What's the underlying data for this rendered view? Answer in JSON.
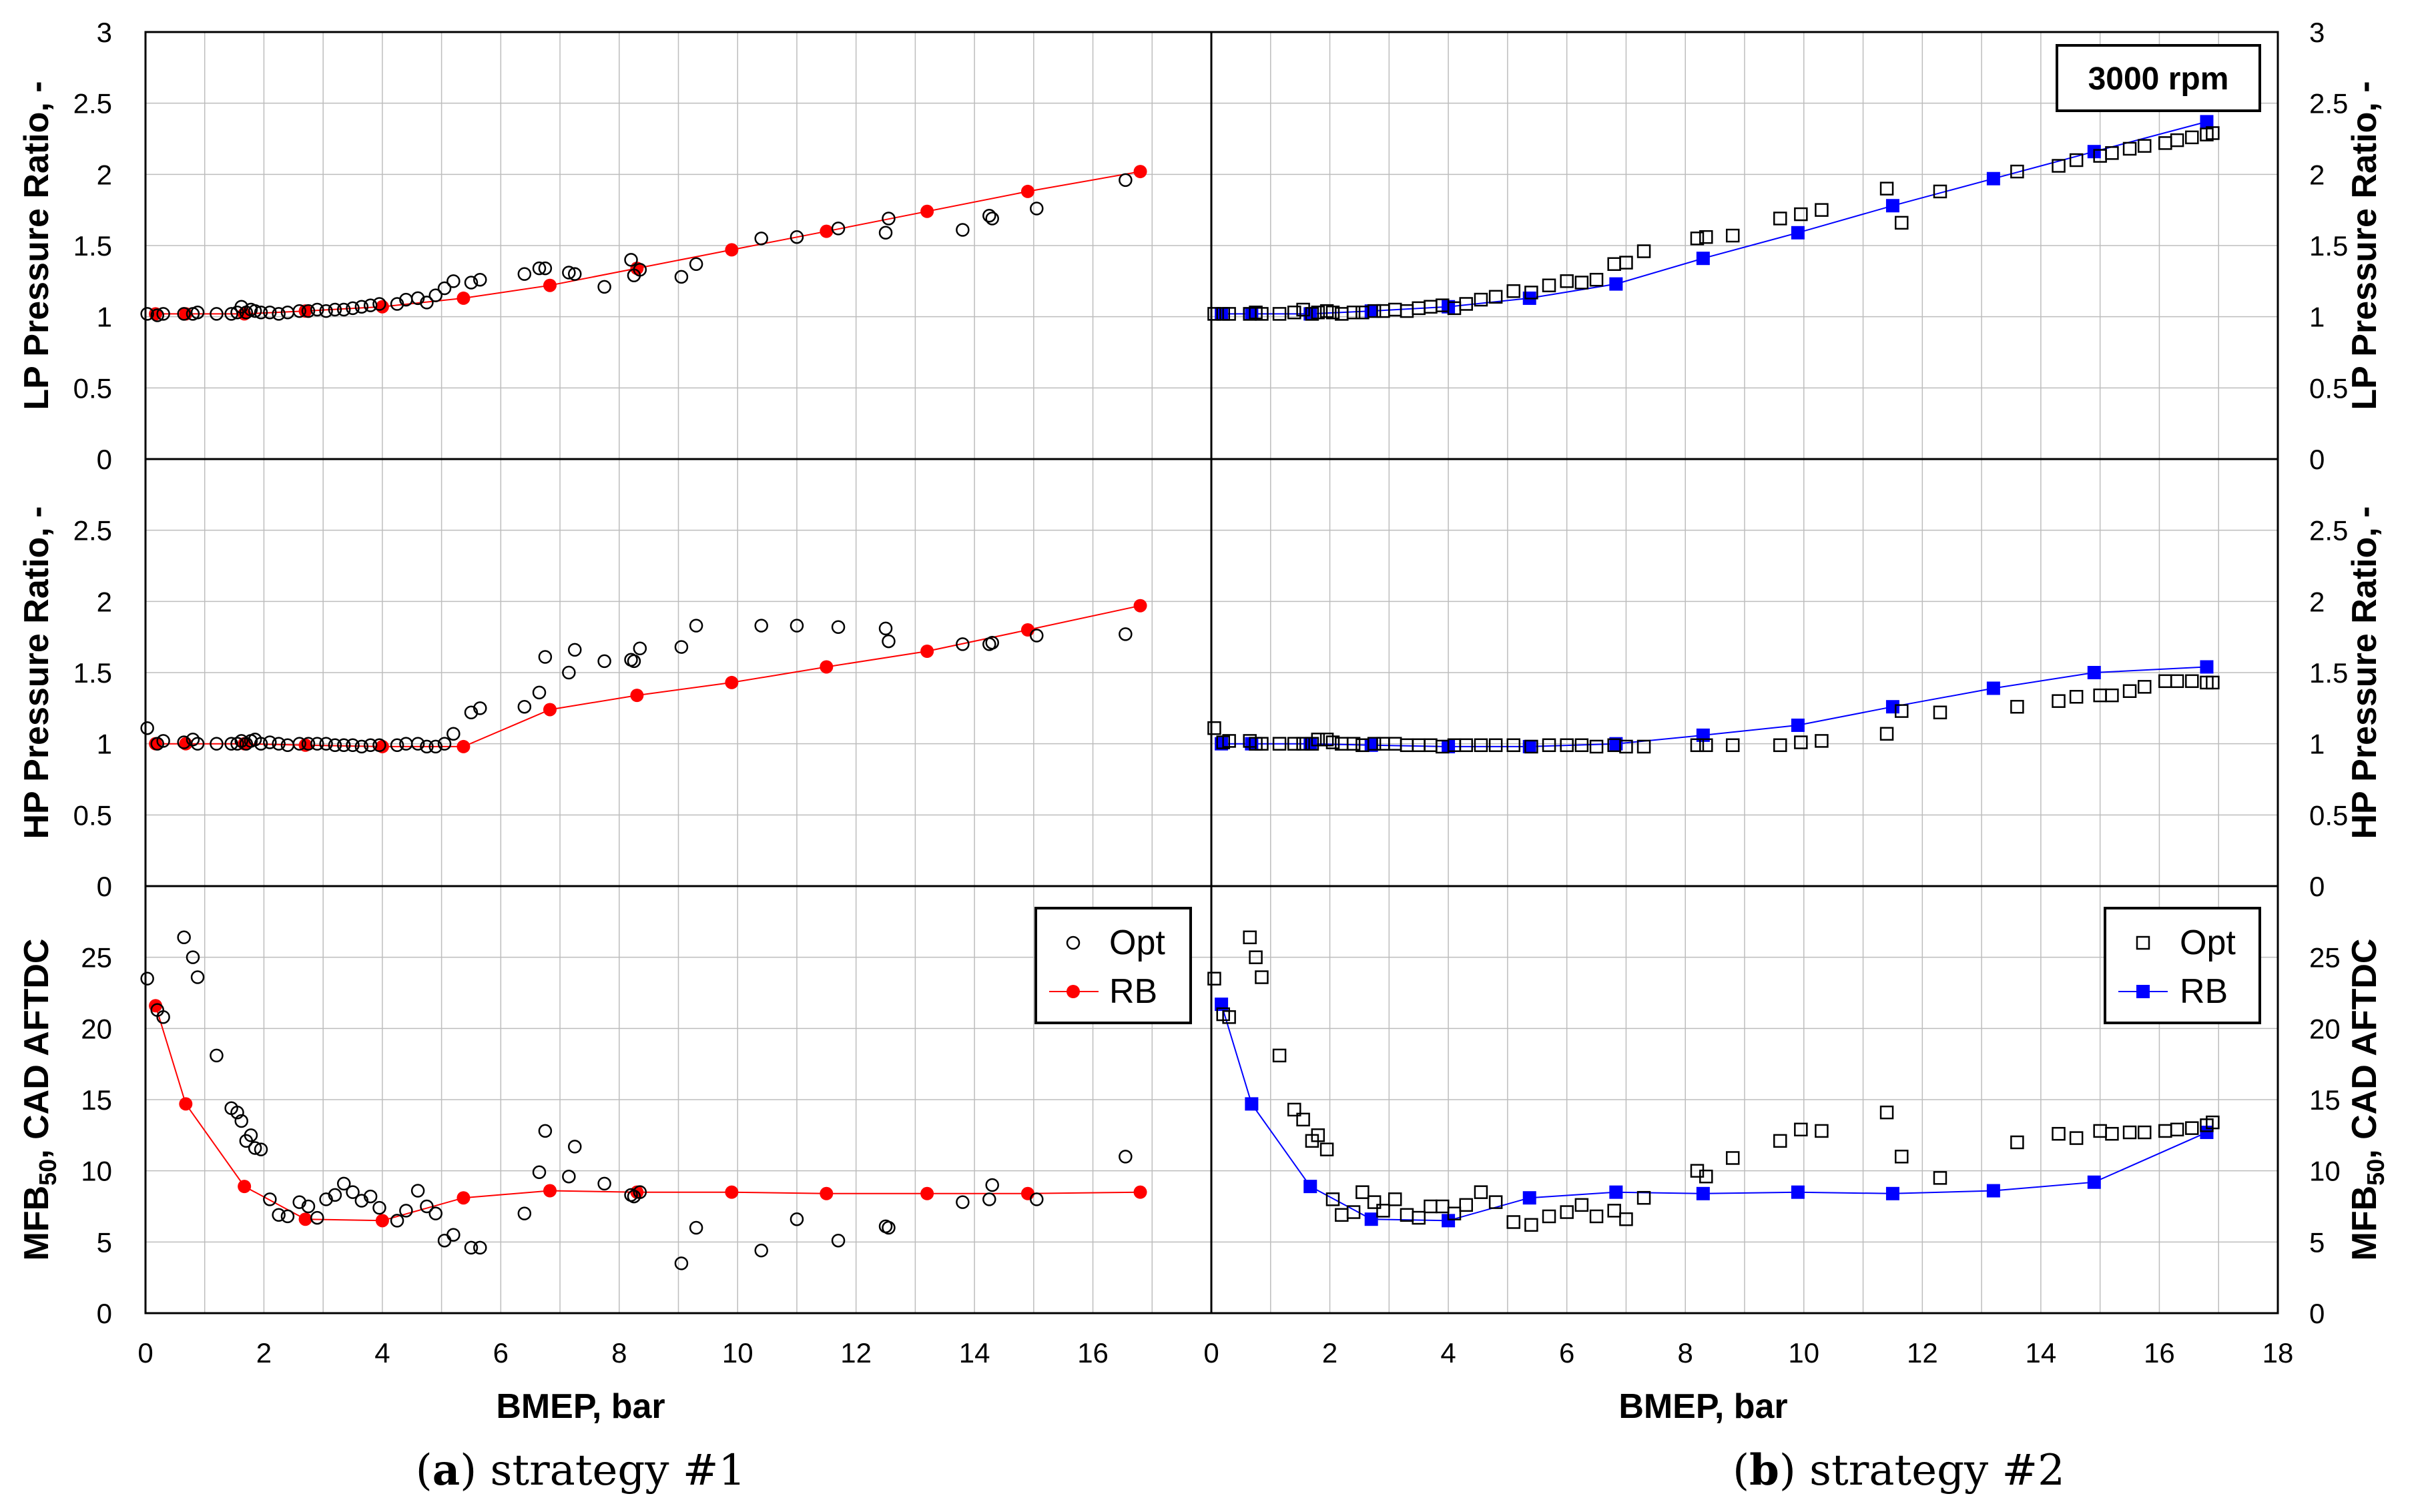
{
  "chart_data": {
    "type": "scatter",
    "annotation": "3000 rpm",
    "legend": {
      "opt": "Opt",
      "rb": "RB"
    },
    "colors": {
      "left_rb": "#ff0000",
      "right_rb": "#0000ff",
      "opt_marker": "#000000",
      "grid": "#bdbdbd"
    },
    "xlabel": "BMEP, bar",
    "captions": {
      "left": {
        "bold": "a",
        "rest": " strategy #1"
      },
      "right": {
        "bold": "b",
        "rest": " strategy #2"
      }
    },
    "ylabels": {
      "lp": "LP Pressure Ratio, -",
      "hp": "HP Pressure Ratio, -",
      "mfb_main": "MFB",
      "mfb_sub": "50",
      "mfb_rest": ", CAD AFTDC"
    },
    "x_ranges": {
      "left": [
        0,
        18
      ],
      "right": [
        0,
        18
      ]
    },
    "x_ticks": {
      "left": [
        "0",
        "2",
        "4",
        "6",
        "8",
        "10",
        "12",
        "14",
        "16"
      ],
      "right": [
        "0",
        "2",
        "4",
        "6",
        "8",
        "10",
        "12",
        "14",
        "16",
        "18"
      ]
    },
    "y_ticks": {
      "lp": [
        "0",
        "0.5",
        "1",
        "1.5",
        "2",
        "2.5",
        "3"
      ],
      "hp": [
        "0",
        "0.5",
        "1",
        "1.5",
        "2",
        "2.5"
      ],
      "mfb": [
        "0",
        "5",
        "10",
        "15",
        "20",
        "25"
      ]
    },
    "y_ranges": {
      "lp": [
        0,
        3
      ],
      "hp": [
        0,
        3
      ],
      "mfb": [
        0,
        30
      ]
    },
    "rb_x": [
      0.17,
      0.68,
      1.67,
      2.7,
      4.0,
      5.37,
      6.83,
      8.3,
      9.9,
      11.5,
      13.2,
      14.9,
      16.8
    ],
    "strategy1": {
      "lp_rb": [
        1.02,
        1.02,
        1.02,
        1.04,
        1.07,
        1.13,
        1.22,
        1.34,
        1.47,
        1.6,
        1.74,
        1.88,
        2.02
      ],
      "hp_rb": [
        1.0,
        1.0,
        1.0,
        0.99,
        0.98,
        0.98,
        1.24,
        1.34,
        1.43,
        1.54,
        1.65,
        1.8,
        1.97
      ],
      "mfb_rb": [
        21.6,
        14.7,
        8.9,
        6.6,
        6.5,
        8.1,
        8.6,
        8.5,
        8.5,
        8.4,
        8.4,
        8.4,
        8.5
      ],
      "opt_x": [
        0.03,
        0.2,
        0.3,
        0.65,
        0.8,
        0.88,
        1.2,
        1.45,
        1.55,
        1.62,
        1.7,
        1.78,
        1.85,
        1.95,
        2.1,
        2.25,
        2.4,
        2.6,
        2.75,
        2.9,
        3.05,
        3.2,
        3.35,
        3.5,
        3.65,
        3.8,
        3.95,
        4.25,
        4.4,
        4.6,
        4.75,
        4.9,
        5.05,
        5.2,
        5.5,
        5.65,
        6.4,
        6.65,
        6.75,
        7.15,
        7.25,
        7.75,
        8.2,
        8.25,
        8.35,
        9.05,
        9.3,
        10.4,
        11.0,
        11.7,
        12.5,
        12.55,
        13.8,
        14.25,
        14.3,
        15.05,
        16.55
      ],
      "lp_opt": [
        1.02,
        1.01,
        1.02,
        1.02,
        1.02,
        1.03,
        1.02,
        1.02,
        1.03,
        1.07,
        1.03,
        1.05,
        1.04,
        1.03,
        1.03,
        1.02,
        1.03,
        1.04,
        1.04,
        1.05,
        1.04,
        1.05,
        1.05,
        1.06,
        1.07,
        1.08,
        1.09,
        1.09,
        1.12,
        1.13,
        1.1,
        1.15,
        1.2,
        1.25,
        1.24,
        1.26,
        1.3,
        1.34,
        1.34,
        1.31,
        1.3,
        1.21,
        1.4,
        1.29,
        1.33,
        1.28,
        1.37,
        1.55,
        1.56,
        1.62,
        1.59,
        1.69,
        1.61,
        1.71,
        1.69,
        1.76,
        1.96
      ],
      "hp_opt": [
        1.11,
        1.0,
        1.02,
        1.01,
        1.03,
        1.0,
        1.0,
        1.0,
        1.0,
        1.02,
        1.0,
        1.02,
        1.03,
        1.0,
        1.01,
        1.0,
        0.99,
        1.0,
        1.0,
        1.0,
        1.0,
        0.99,
        0.99,
        0.99,
        0.98,
        0.99,
        0.99,
        0.99,
        1.0,
        1.0,
        0.98,
        0.98,
        1.0,
        1.07,
        1.22,
        1.25,
        1.26,
        1.36,
        1.61,
        1.5,
        1.66,
        1.58,
        1.59,
        1.58,
        1.67,
        1.68,
        1.83,
        1.83,
        1.83,
        1.82,
        1.81,
        1.72,
        1.7,
        1.7,
        1.71,
        1.76,
        1.77
      ],
      "mfb_opt": [
        23.5,
        21.3,
        20.8,
        26.4,
        25.0,
        23.6,
        18.1,
        14.4,
        14.1,
        13.5,
        12.1,
        12.5,
        11.6,
        11.5,
        8.0,
        6.9,
        6.8,
        7.8,
        7.5,
        6.7,
        8.0,
        8.3,
        9.1,
        8.5,
        7.9,
        8.2,
        7.4,
        6.5,
        7.2,
        8.6,
        7.5,
        7.0,
        5.1,
        5.5,
        4.6,
        4.6,
        7.0,
        9.9,
        12.8,
        9.6,
        11.7,
        9.1,
        8.3,
        8.2,
        8.5,
        3.5,
        6.0,
        4.4,
        6.6,
        5.1,
        6.1,
        6.0,
        7.8,
        8.0,
        9.0,
        8.0,
        11.0
      ]
    },
    "strategy2": {
      "lp_rb": [
        1.02,
        1.02,
        1.02,
        1.04,
        1.07,
        1.13,
        1.23,
        1.41,
        1.59,
        1.78,
        1.97,
        2.16,
        2.37
      ],
      "hp_rb": [
        1.0,
        1.0,
        1.0,
        0.99,
        0.98,
        0.98,
        1.0,
        1.06,
        1.13,
        1.26,
        1.39,
        1.5,
        1.54
      ],
      "mfb_rb": [
        21.7,
        14.7,
        8.9,
        6.6,
        6.5,
        8.1,
        8.5,
        8.4,
        8.5,
        8.4,
        8.6,
        9.2,
        12.7
      ],
      "opt_x": [
        0.05,
        0.2,
        0.3,
        0.65,
        0.75,
        0.85,
        1.15,
        1.4,
        1.55,
        1.7,
        1.8,
        1.95,
        2.05,
        2.2,
        2.4,
        2.55,
        2.75,
        2.9,
        3.1,
        3.3,
        3.5,
        3.7,
        3.9,
        4.1,
        4.3,
        4.55,
        4.8,
        5.1,
        5.4,
        5.7,
        6.0,
        6.25,
        6.5,
        6.8,
        7.0,
        7.3,
        8.2,
        8.35,
        8.8,
        9.6,
        9.95,
        10.3,
        11.4,
        11.65,
        12.3,
        13.6,
        14.3,
        14.6,
        15.0,
        15.2,
        15.5,
        15.75,
        16.1,
        16.3,
        16.55,
        16.8,
        16.9
      ],
      "lp_opt": [
        1.02,
        1.02,
        1.02,
        1.02,
        1.03,
        1.02,
        1.02,
        1.03,
        1.05,
        1.02,
        1.03,
        1.04,
        1.03,
        1.02,
        1.03,
        1.03,
        1.04,
        1.04,
        1.05,
        1.04,
        1.06,
        1.07,
        1.08,
        1.06,
        1.09,
        1.12,
        1.14,
        1.18,
        1.17,
        1.22,
        1.25,
        1.24,
        1.26,
        1.37,
        1.38,
        1.46,
        1.55,
        1.56,
        1.57,
        1.69,
        1.72,
        1.75,
        1.9,
        1.66,
        1.88,
        2.02,
        2.06,
        2.1,
        2.13,
        2.15,
        2.18,
        2.2,
        2.22,
        2.24,
        2.26,
        2.28,
        2.29
      ],
      "hp_opt": [
        1.11,
        1.01,
        1.02,
        1.02,
        1.0,
        1.0,
        1.0,
        1.0,
        1.0,
        1.0,
        1.03,
        1.03,
        1.01,
        1.0,
        1.0,
        0.99,
        1.0,
        1.0,
        1.0,
        0.99,
        0.99,
        0.99,
        0.98,
        0.99,
        0.99,
        0.99,
        0.99,
        0.99,
        0.98,
        0.99,
        0.99,
        0.99,
        0.98,
        0.99,
        0.98,
        0.98,
        0.99,
        0.99,
        0.99,
        0.99,
        1.01,
        1.02,
        1.07,
        1.23,
        1.22,
        1.26,
        1.3,
        1.33,
        1.34,
        1.34,
        1.37,
        1.4,
        1.44,
        1.44,
        1.44,
        1.43,
        1.43
      ],
      "mfb_opt": [
        23.5,
        21.0,
        20.8,
        26.4,
        25.0,
        23.6,
        18.1,
        14.3,
        13.6,
        12.1,
        12.5,
        11.5,
        8.0,
        6.9,
        7.1,
        8.5,
        7.8,
        7.2,
        8.0,
        6.9,
        6.7,
        7.5,
        7.5,
        7.0,
        7.6,
        8.5,
        7.8,
        6.4,
        6.2,
        6.8,
        7.1,
        7.6,
        6.8,
        7.2,
        6.6,
        8.1,
        10.0,
        9.6,
        10.9,
        12.1,
        12.9,
        12.8,
        14.1,
        11.0,
        9.5,
        12.0,
        12.6,
        12.3,
        12.8,
        12.6,
        12.7,
        12.7,
        12.8,
        12.9,
        13.0,
        13.2,
        13.4
      ]
    }
  }
}
